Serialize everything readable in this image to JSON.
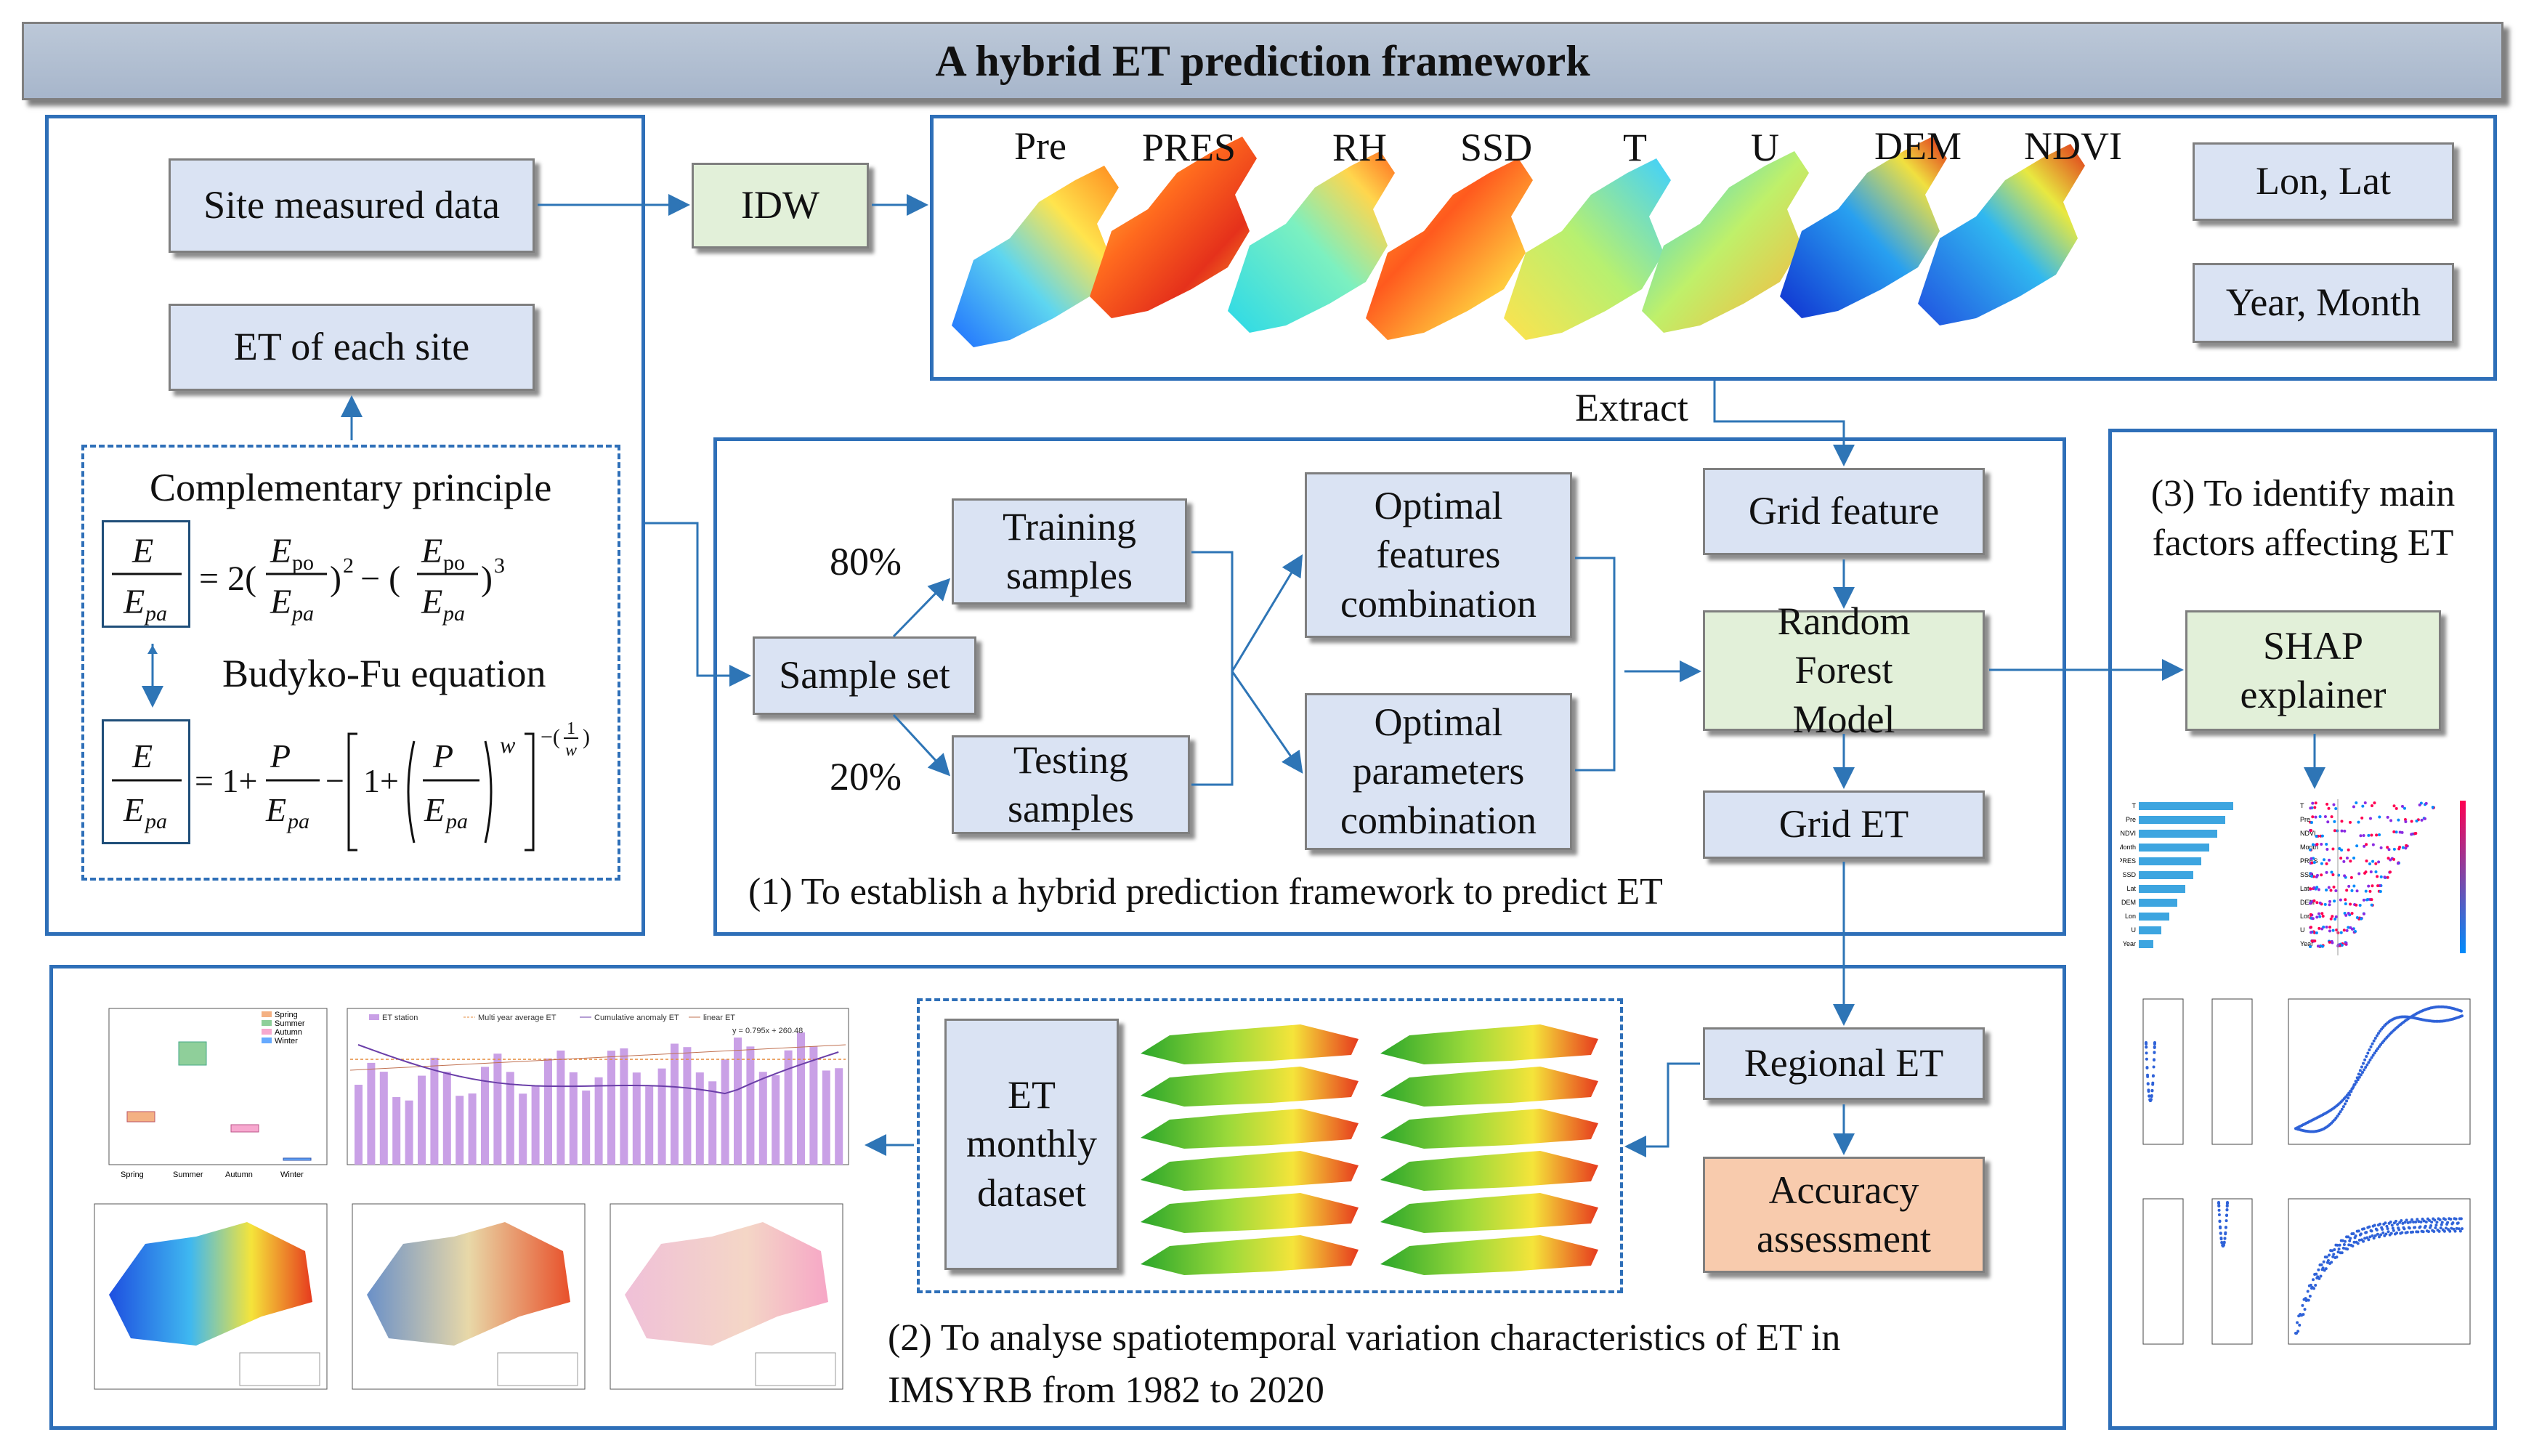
{
  "title": "A hybrid ET prediction framework",
  "left": {
    "site_data": "Site measured data",
    "idw": "IDW",
    "et_site": "ET of each site",
    "complementary": "Complementary principle",
    "budyko": "Budyko-Fu equation"
  },
  "top_strip": {
    "variables": [
      "Pre",
      "PRES",
      "RH",
      "SSD",
      "T",
      "U",
      "DEM",
      "NDVI"
    ],
    "lon_lat": "Lon, Lat",
    "year_month": "Year, Month",
    "extract": "Extract"
  },
  "middle": {
    "pct80": "80%",
    "pct20": "20%",
    "sample_set": "Sample set",
    "training": "Training samples",
    "testing": "Testing samples",
    "opt_features": "Optimal features combination",
    "opt_params": "Optimal parameters combination",
    "grid_feature": "Grid feature",
    "rf_model": "Random Forest Model",
    "grid_et": "Grid ET",
    "caption1": "(1) To establish a hybrid prediction framework to predict ET"
  },
  "right": {
    "caption3": "(3) To identify main factors affecting ET",
    "shap": "SHAP explainer",
    "shap_features": [
      "T",
      "Pre",
      "NDVI",
      "Month",
      "PRES",
      "SSD",
      "Lat",
      "DEM",
      "Lon",
      "U",
      "Year"
    ]
  },
  "bottom": {
    "regional_et": "Regional ET",
    "accuracy": "Accuracy assessment",
    "et_dataset": "ET monthly dataset",
    "caption2": "(2) To analyse spatiotemporal variation characteristics of ET in IMSYRB from 1982 to 2020",
    "box_seasons": [
      "Spring",
      "Summer",
      "Autumn",
      "Winter"
    ],
    "chart_legend": [
      "ET station",
      "Multi year average ET",
      "Cumulative anomaly ET",
      "linear ET"
    ],
    "equation": "y = 0.795x + 260.48"
  }
}
